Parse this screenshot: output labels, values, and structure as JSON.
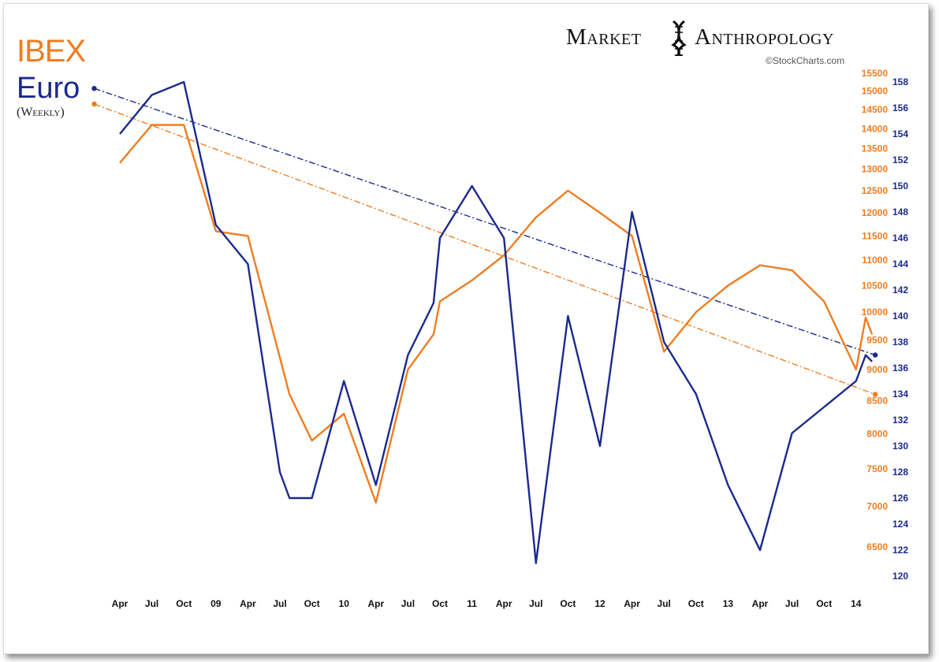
{
  "title": {
    "ibex": "IBEX",
    "euro": "Euro",
    "subtitle": "(Weekly)"
  },
  "brand": {
    "left": "Market",
    "right": "Anthropology",
    "credit": "©StockCharts.com"
  },
  "colors": {
    "ibex": "#ee7d22",
    "euro": "#1a2a8c"
  },
  "chart_data": {
    "type": "line",
    "title": "",
    "legend": "top-left",
    "grid": false,
    "x_tick_labels": [
      "Apr",
      "Jul",
      "Oct",
      "09",
      "Apr",
      "Jul",
      "Oct",
      "10",
      "Apr",
      "Jul",
      "Oct",
      "11",
      "Apr",
      "Jul",
      "Oct",
      "12",
      "Apr",
      "Jul",
      "Oct",
      "13",
      "Apr",
      "Jul",
      "Oct",
      "14"
    ],
    "ibex_axis": {
      "ticks": [
        6500,
        7000,
        7500,
        8000,
        8500,
        9000,
        9500,
        10000,
        10500,
        11000,
        11500,
        12000,
        12500,
        13000,
        13500,
        14000,
        14500,
        15000,
        15500
      ],
      "scale": "log"
    },
    "euro_axis": {
      "ticks": [
        120,
        122,
        124,
        126,
        128,
        130,
        132,
        134,
        136,
        138,
        140,
        142,
        144,
        146,
        148,
        150,
        152,
        154,
        156,
        158
      ],
      "scale": "linear"
    },
    "series": [
      {
        "name": "IBEX",
        "axis": "ibex",
        "x": [
          0,
          1,
          2,
          3,
          4,
          5,
          5.3,
          6,
          7,
          8,
          9,
          9.8,
          10,
          11,
          12,
          13,
          14,
          15,
          16,
          17,
          18,
          19,
          20,
          21,
          22,
          23,
          23.3,
          23.5
        ],
        "values": [
          13150,
          14100,
          14100,
          11600,
          11500,
          9200,
          8600,
          7900,
          8300,
          7050,
          9000,
          9600,
          10200,
          10600,
          11100,
          11900,
          12500,
          12000,
          11500,
          9300,
          10000,
          10500,
          10900,
          10800,
          10200,
          9000,
          9900,
          9600
        ]
      },
      {
        "name": "Euro",
        "axis": "euro",
        "x": [
          0,
          1,
          2,
          3,
          4,
          5,
          5.3,
          6,
          7,
          8,
          9,
          9.8,
          10,
          11,
          12,
          13,
          14,
          15,
          16,
          17,
          18,
          19,
          20,
          21,
          22,
          23,
          23.3,
          23.5
        ],
        "values": [
          154,
          157,
          158,
          147,
          144,
          128,
          126,
          126,
          135,
          127,
          137,
          141,
          146,
          150,
          146,
          121,
          140,
          130,
          148,
          138,
          134,
          127,
          122,
          131,
          133,
          135,
          137,
          136.5
        ]
      }
    ],
    "trendlines": [
      {
        "name": "euro-trendline",
        "axis": "euro",
        "from": [
          -0.8,
          157.5
        ],
        "to": [
          23.6,
          137
        ]
      },
      {
        "name": "ibex-trendline",
        "axis": "ibex",
        "from": [
          -0.8,
          14650
        ],
        "to": [
          23.6,
          8600
        ]
      }
    ]
  }
}
